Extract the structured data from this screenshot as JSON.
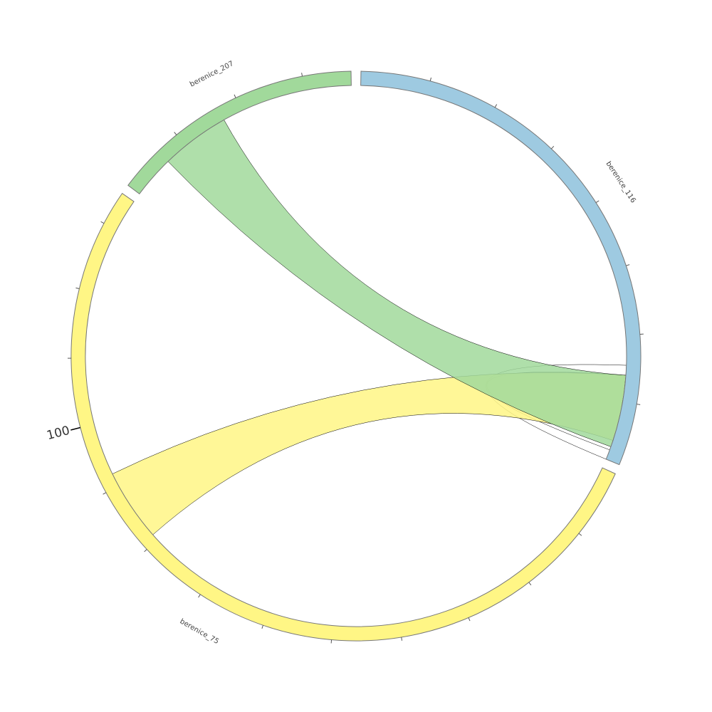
{
  "chart_data": {
    "type": "chord",
    "segments": [
      {
        "name": "berenice_116",
        "value": 79,
        "color": "#9ecae1",
        "ticks": [
          10,
          20,
          30,
          40,
          50,
          60,
          70
        ],
        "tick_labels": []
      },
      {
        "name": "berenice_75",
        "value": 135,
        "color": "#fff685",
        "ticks": [
          10,
          20,
          30,
          40,
          50,
          60,
          70,
          80,
          90,
          100,
          110,
          120,
          130
        ],
        "tick_labels": [
          100
        ]
      },
      {
        "name": "berenice_207",
        "value": 37,
        "color": "#a1d99b",
        "ticks": [
          10,
          20,
          30
        ],
        "tick_labels": []
      }
    ],
    "links": [
      {
        "source": "berenice_116",
        "source_range": [
          64.5,
          66
        ],
        "target": "berenice_116",
        "target_range": [
          77.5,
          79
        ],
        "color": "#ffffff"
      },
      {
        "source": "berenice_75",
        "source_range": [
          81,
          92
        ],
        "target": "berenice_116",
        "target_range": [
          66,
          76
        ],
        "color": "#fff685"
      },
      {
        "source": "berenice_207",
        "source_range": [
          6.5,
          17
        ],
        "target": "berenice_116",
        "target_range": [
          66,
          77
        ],
        "color": "#a1d99b"
      }
    ]
  }
}
